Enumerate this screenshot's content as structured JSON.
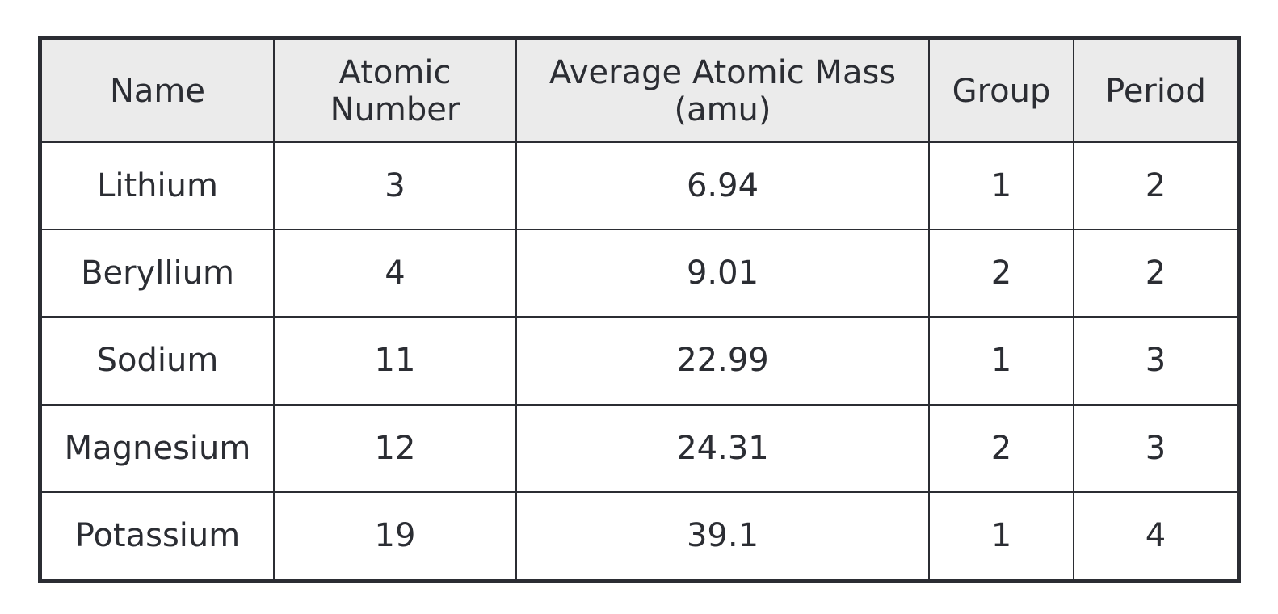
{
  "table": {
    "headers": [
      "Name",
      "Atomic\nNumber",
      "Average Atomic Mass\n(amu)",
      "Group",
      "Period"
    ],
    "rows": [
      [
        "Lithium",
        "3",
        "6.94",
        "1",
        "2"
      ],
      [
        "Beryllium",
        "4",
        "9.01",
        "2",
        "2"
      ],
      [
        "Sodium",
        "11",
        "22.99",
        "1",
        "3"
      ],
      [
        "Magnesium",
        "12",
        "24.31",
        "2",
        "3"
      ],
      [
        "Potassium",
        "19",
        "39.1",
        "1",
        "4"
      ]
    ]
  },
  "chart_data": {
    "type": "table",
    "columns": [
      "Name",
      "Atomic Number",
      "Average Atomic Mass (amu)",
      "Group",
      "Period"
    ],
    "rows": [
      [
        "Lithium",
        3,
        6.94,
        1,
        2
      ],
      [
        "Beryllium",
        4,
        9.01,
        2,
        2
      ],
      [
        "Sodium",
        11,
        22.99,
        1,
        3
      ],
      [
        "Magnesium",
        12,
        24.31,
        2,
        3
      ],
      [
        "Potassium",
        19,
        39.1,
        1,
        4
      ]
    ]
  }
}
